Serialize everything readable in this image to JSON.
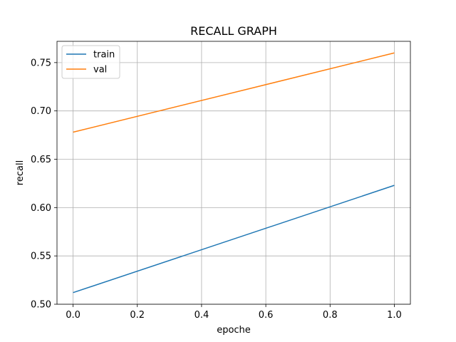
{
  "chart_data": {
    "type": "line",
    "title": "RECALL GRAPH",
    "xlabel": "epoche",
    "ylabel": "recall",
    "x": [
      0.0,
      1.0
    ],
    "series": [
      {
        "name": "train",
        "values": [
          0.512,
          0.623
        ],
        "color": "#1f77b4"
      },
      {
        "name": "val",
        "values": [
          0.678,
          0.76
        ],
        "color": "#ff7f0e"
      }
    ],
    "xlim": [
      -0.05,
      1.05
    ],
    "ylim": [
      0.5,
      0.772
    ],
    "xticks": [
      "0.0",
      "0.2",
      "0.4",
      "0.6",
      "0.8",
      "1.0"
    ],
    "yticks": [
      "0.50",
      "0.55",
      "0.60",
      "0.65",
      "0.70",
      "0.75"
    ],
    "grid": true,
    "legend_position": "top-left"
  }
}
